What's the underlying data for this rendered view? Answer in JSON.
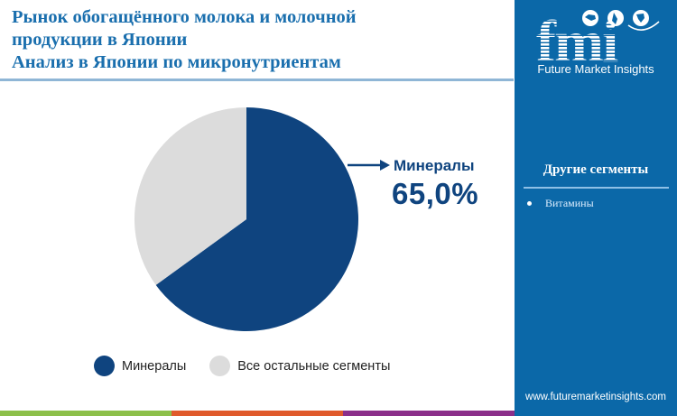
{
  "header": {
    "title_lines": [
      "Рынок обогащённого молока и молочной",
      "продукции в Японии",
      "Анализ в Японии по микронутриентам"
    ]
  },
  "chart_data": {
    "type": "pie",
    "title": "Рынок обогащённого молока и молочной продукции в Японии — Анализ в Японии по микронутриентам",
    "categories": [
      "Минералы",
      "Все остальные сегменты"
    ],
    "values": [
      65.0,
      35.0
    ],
    "unit": "%",
    "colors": [
      "#0f447f",
      "#dcdcdc"
    ],
    "start_angle_deg": 0,
    "direction": "clockwise",
    "legend_position": "bottom",
    "annotations": [
      {
        "label": "Минералы",
        "value": "65,0%"
      }
    ]
  },
  "callout": {
    "label": "Минералы",
    "value": "65,0%"
  },
  "legend": {
    "items": [
      {
        "label": "Минералы",
        "color": "#0f447f"
      },
      {
        "label": "Все остальные сегменты",
        "color": "#dcdcdc"
      }
    ]
  },
  "sidebar": {
    "logo_text": "fmi",
    "logo_subtitle": "Future Market Insights",
    "heading": "Другие сегменты",
    "items": [
      "Витамины"
    ],
    "website": "www.futuremarketinsights.com",
    "background": "#0b68a8"
  },
  "footer_strip": {
    "colors": [
      "#8cc04a",
      "#e05a2b",
      "#8b2f8a"
    ]
  }
}
